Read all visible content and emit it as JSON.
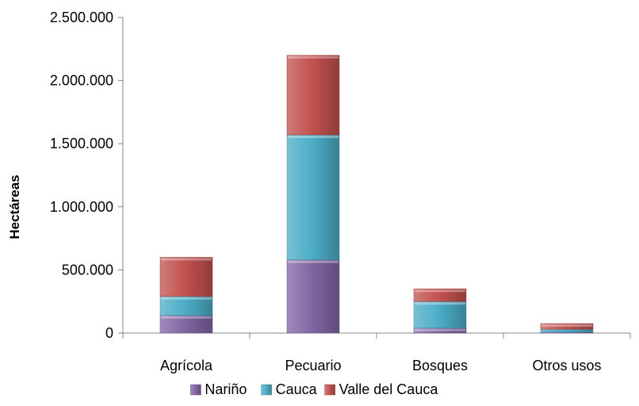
{
  "chart_data": {
    "type": "bar",
    "stacked": true,
    "title": "",
    "xlabel": "",
    "ylabel": "Hectáreas",
    "ylim": [
      0,
      2500000
    ],
    "yticks": [
      0,
      500000,
      1000000,
      1500000,
      2000000,
      2500000
    ],
    "ytick_labels": [
      "0",
      "500.000",
      "1.000.000",
      "1.500.000",
      "2.000.000",
      "2.500.000"
    ],
    "categories": [
      "Agrícola",
      "Pecuario",
      "Bosques",
      "Otros usos"
    ],
    "series": [
      {
        "name": "Nariño",
        "color": "#8064A2",
        "values": [
          140000,
          580000,
          40000,
          8000
        ]
      },
      {
        "name": "Cauca",
        "color": "#4BACC6",
        "values": [
          150000,
          990000,
          210000,
          22000
        ]
      },
      {
        "name": "Valle del Cauca",
        "color": "#C0504D",
        "values": [
          310000,
          630000,
          100000,
          45000
        ]
      }
    ],
    "legend": "bottom",
    "grid": false
  }
}
